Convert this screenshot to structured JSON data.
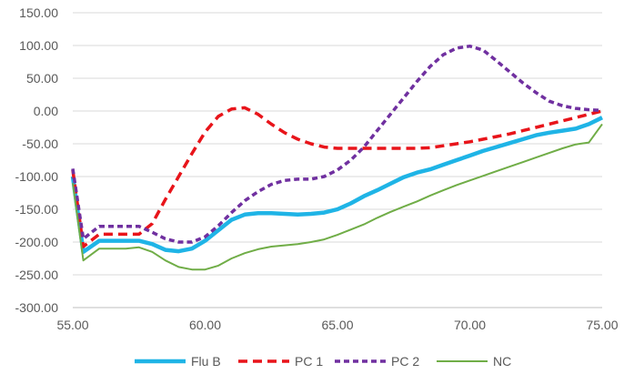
{
  "chart_data": {
    "type": "line",
    "title": "",
    "xlabel": "",
    "ylabel": "",
    "xlim": [
      55,
      75
    ],
    "ylim": [
      -300,
      150
    ],
    "x_ticks": [
      55,
      60,
      65,
      70,
      75
    ],
    "y_ticks": [
      150,
      100,
      50,
      0,
      -50,
      -100,
      -150,
      -200,
      -250,
      -300
    ],
    "x_tick_labels": [
      "55.00",
      "60.00",
      "65.00",
      "70.00",
      "75.00"
    ],
    "y_tick_labels": [
      "150.00",
      "100.00",
      "50.00",
      "0.00",
      "-50.00",
      "-100.00",
      "-150.00",
      "-200.00",
      "-250.00",
      "-300.00"
    ],
    "grid": "horizontal",
    "legend": "bottom",
    "series": [
      {
        "name": "Flu B",
        "color": "#1fb4e6",
        "style": "solid",
        "x": [
          55,
          55.4,
          56,
          56.5,
          57,
          57.5,
          58,
          58.5,
          59,
          59.5,
          60,
          60.5,
          61,
          61.5,
          62,
          62.5,
          63,
          63.5,
          64,
          64.5,
          65,
          65.5,
          66,
          66.5,
          67,
          67.5,
          68,
          68.5,
          69,
          69.5,
          70,
          70.5,
          71,
          71.5,
          72,
          72.5,
          73,
          73.5,
          74,
          74.5,
          75
        ],
        "y": [
          -100,
          -215,
          -198,
          -198,
          -198,
          -198,
          -203,
          -212,
          -214,
          -210,
          -198,
          -182,
          -166,
          -158,
          -156,
          -156,
          -157,
          -158,
          -157,
          -155,
          -150,
          -141,
          -130,
          -121,
          -111,
          -101,
          -94,
          -89,
          -82,
          -75,
          -68,
          -61,
          -55,
          -49,
          -43,
          -37,
          -33,
          -30,
          -27,
          -20,
          -10
        ]
      },
      {
        "name": "PC 1",
        "color": "#e8141a",
        "style": "dashed",
        "x": [
          55,
          55.4,
          56,
          56.5,
          57,
          57.5,
          58,
          58.5,
          59,
          59.5,
          60,
          60.5,
          61,
          61.5,
          62,
          62.5,
          63,
          63.5,
          64,
          64.5,
          65,
          65.5,
          66,
          66.5,
          67,
          67.5,
          68,
          68.5,
          69,
          69.5,
          70,
          70.5,
          71,
          71.5,
          72,
          72.5,
          73,
          73.5,
          74,
          74.5,
          75
        ],
        "y": [
          -90,
          -207,
          -188,
          -188,
          -188,
          -188,
          -172,
          -135,
          -100,
          -65,
          -32,
          -8,
          3,
          5,
          -5,
          -20,
          -33,
          -43,
          -50,
          -55,
          -57,
          -57,
          -57,
          -57,
          -57,
          -57,
          -57,
          -56,
          -53,
          -50,
          -47,
          -43,
          -39,
          -35,
          -30,
          -25,
          -20,
          -15,
          -10,
          -5,
          0
        ]
      },
      {
        "name": "PC 2",
        "color": "#7030a0",
        "style": "dashed",
        "x": [
          55,
          55.4,
          56,
          56.5,
          57,
          57.5,
          58,
          58.5,
          59,
          59.5,
          60,
          60.5,
          61,
          61.5,
          62,
          62.5,
          63,
          63.5,
          64,
          64.5,
          65,
          65.5,
          66,
          66.5,
          67,
          67.5,
          68,
          68.5,
          69,
          69.5,
          70,
          70.5,
          71,
          71.5,
          72,
          72.5,
          73,
          73.5,
          74,
          74.5,
          75
        ],
        "y": [
          -88,
          -195,
          -176,
          -176,
          -176,
          -176,
          -185,
          -195,
          -200,
          -200,
          -192,
          -175,
          -155,
          -137,
          -123,
          -112,
          -106,
          -104,
          -104,
          -100,
          -90,
          -75,
          -55,
          -30,
          -5,
          20,
          45,
          68,
          86,
          96,
          99,
          93,
          77,
          60,
          43,
          28,
          15,
          8,
          4,
          2,
          1
        ]
      },
      {
        "name": "NC",
        "color": "#70ad47",
        "style": "solid",
        "x": [
          55,
          55.4,
          56,
          56.5,
          57,
          57.5,
          58,
          58.5,
          59,
          59.5,
          60,
          60.5,
          61,
          61.5,
          62,
          62.5,
          63,
          63.5,
          64,
          64.5,
          65,
          65.5,
          66,
          66.5,
          67,
          67.5,
          68,
          68.5,
          69,
          69.5,
          70,
          70.5,
          71,
          71.5,
          72,
          72.5,
          73,
          73.5,
          74,
          74.5,
          75
        ],
        "y": [
          -110,
          -228,
          -210,
          -210,
          -210,
          -208,
          -215,
          -228,
          -238,
          -242,
          -242,
          -236,
          -225,
          -217,
          -211,
          -207,
          -205,
          -203,
          -200,
          -196,
          -189,
          -181,
          -173,
          -163,
          -154,
          -146,
          -138,
          -129,
          -121,
          -113,
          -106,
          -99,
          -92,
          -85,
          -78,
          -71,
          -64,
          -57,
          -51,
          -48,
          -20
        ]
      }
    ]
  }
}
